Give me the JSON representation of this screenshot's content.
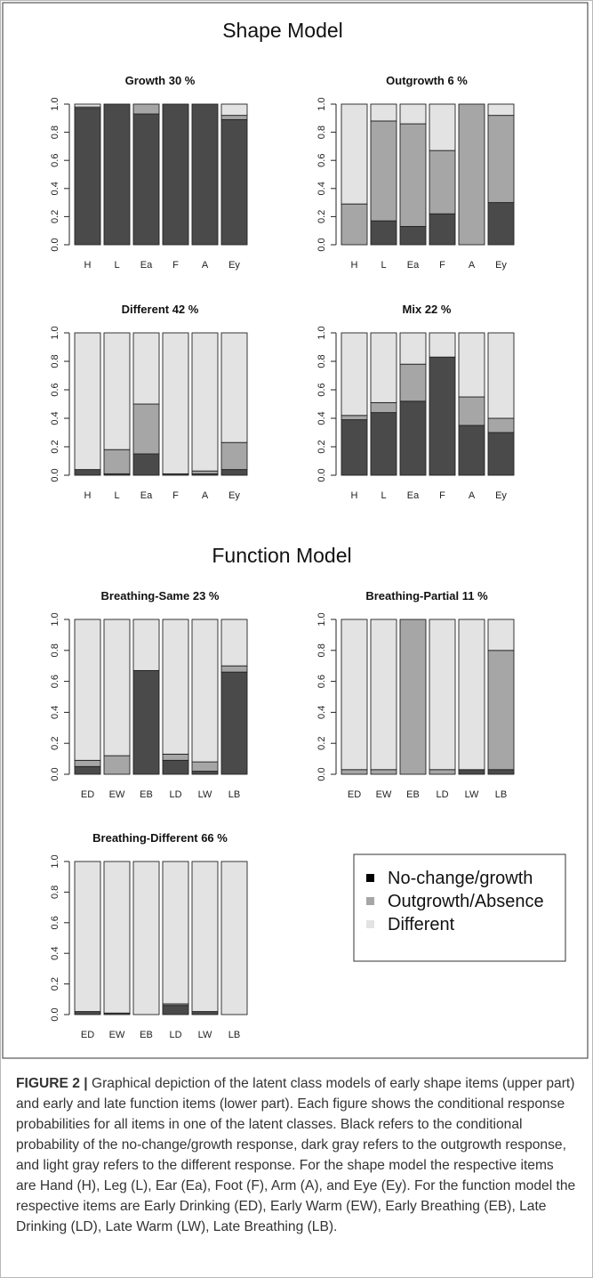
{
  "figure": {
    "shape_title": "Shape Model",
    "function_title": "Function Model",
    "legend": {
      "items": [
        {
          "label": "No-change/growth",
          "color": "#000000"
        },
        {
          "label": "Outgrowth/Absence",
          "color": "#a6a6a6"
        },
        {
          "label": "Different",
          "color": "#e3e3e3"
        }
      ]
    },
    "colors": {
      "no_change_growth": "#4a4a4a",
      "outgrowth": "#a6a6a6",
      "different": "#e3e3e3",
      "outline": "#222222"
    }
  },
  "chart_data": [
    {
      "type": "bar",
      "stacked": true,
      "title": "Growth 30 %",
      "categories": [
        "H",
        "L",
        "Ea",
        "F",
        "A",
        "Ey"
      ],
      "ylim": [
        0,
        1
      ],
      "yticks": [
        "0.0",
        "0.2",
        "0.4",
        "0.6",
        "0.8",
        "1.0"
      ],
      "series": [
        {
          "values": [
            0.97,
            1.0,
            0.93,
            1.0,
            1.0,
            0.89
          ]
        },
        {
          "values": [
            0.01,
            0.0,
            0.07,
            0.0,
            0.0,
            0.03
          ]
        },
        {
          "values": [
            0.02,
            0.0,
            0.0,
            0.0,
            0.0,
            0.08
          ]
        }
      ]
    },
    {
      "type": "bar",
      "stacked": true,
      "title": "Outgrowth 6 %",
      "categories": [
        "H",
        "L",
        "Ea",
        "F",
        "A",
        "Ey"
      ],
      "ylim": [
        0,
        1
      ],
      "yticks": [
        "0.0",
        "0.2",
        "0.4",
        "0.6",
        "0.8",
        "1.0"
      ],
      "series": [
        {
          "values": [
            0.0,
            0.17,
            0.13,
            0.22,
            0.0,
            0.3
          ]
        },
        {
          "values": [
            0.29,
            0.71,
            0.73,
            0.45,
            1.0,
            0.62
          ]
        },
        {
          "values": [
            0.71,
            0.12,
            0.14,
            0.33,
            0.0,
            0.08
          ]
        }
      ]
    },
    {
      "type": "bar",
      "stacked": true,
      "title": "Different 42 %",
      "categories": [
        "H",
        "L",
        "Ea",
        "F",
        "A",
        "Ey"
      ],
      "ylim": [
        0,
        1
      ],
      "yticks": [
        "0.0",
        "0.2",
        "0.4",
        "0.6",
        "0.8",
        "1.0"
      ],
      "series": [
        {
          "values": [
            0.04,
            0.01,
            0.15,
            0.01,
            0.01,
            0.04
          ]
        },
        {
          "values": [
            0.0,
            0.17,
            0.35,
            0.0,
            0.02,
            0.19
          ]
        },
        {
          "values": [
            0.96,
            0.82,
            0.5,
            0.99,
            0.97,
            0.77
          ]
        }
      ]
    },
    {
      "type": "bar",
      "stacked": true,
      "title": "Mix 22 %",
      "categories": [
        "H",
        "L",
        "Ea",
        "F",
        "A",
        "Ey"
      ],
      "ylim": [
        0,
        1
      ],
      "yticks": [
        "0.0",
        "0.2",
        "0.4",
        "0.6",
        "0.8",
        "1.0"
      ],
      "series": [
        {
          "values": [
            0.39,
            0.44,
            0.52,
            0.83,
            0.35,
            0.3
          ]
        },
        {
          "values": [
            0.03,
            0.07,
            0.26,
            0.0,
            0.2,
            0.1
          ]
        },
        {
          "values": [
            0.58,
            0.49,
            0.22,
            0.17,
            0.45,
            0.6
          ]
        }
      ]
    },
    {
      "type": "bar",
      "stacked": true,
      "title": "Breathing-Same 23 %",
      "categories": [
        "ED",
        "EW",
        "EB",
        "LD",
        "LW",
        "LB"
      ],
      "ylim": [
        0,
        1
      ],
      "yticks": [
        "0.0",
        "0.2",
        "0.4",
        "0.6",
        "0.8",
        "1.0"
      ],
      "series": [
        {
          "values": [
            0.05,
            0.0,
            0.67,
            0.09,
            0.02,
            0.66
          ]
        },
        {
          "values": [
            0.04,
            0.12,
            0.0,
            0.04,
            0.06,
            0.04
          ]
        },
        {
          "values": [
            0.91,
            0.88,
            0.33,
            0.87,
            0.92,
            0.3
          ]
        }
      ]
    },
    {
      "type": "bar",
      "stacked": true,
      "title": "Breathing-Partial 11 %",
      "categories": [
        "ED",
        "EW",
        "EB",
        "LD",
        "LW",
        "LB"
      ],
      "ylim": [
        0,
        1
      ],
      "yticks": [
        "0.0",
        "0.2",
        "0.4",
        "0.6",
        "0.8",
        "1.0"
      ],
      "series": [
        {
          "values": [
            0.0,
            0.0,
            0.0,
            0.0,
            0.03,
            0.03
          ]
        },
        {
          "values": [
            0.03,
            0.03,
            1.0,
            0.03,
            0.0,
            0.77
          ]
        },
        {
          "values": [
            0.97,
            0.97,
            0.0,
            0.97,
            0.97,
            0.2
          ]
        }
      ]
    },
    {
      "type": "bar",
      "stacked": true,
      "title": "Breathing-Different 66 %",
      "categories": [
        "ED",
        "EW",
        "EB",
        "LD",
        "LW",
        "LB"
      ],
      "ylim": [
        0,
        1
      ],
      "yticks": [
        "0.0",
        "0.2",
        "0.4",
        "0.6",
        "0.8",
        "1.0"
      ],
      "series": [
        {
          "values": [
            0.02,
            0.01,
            0.0,
            0.06,
            0.02,
            0.0
          ]
        },
        {
          "values": [
            0.0,
            0.0,
            0.0,
            0.01,
            0.0,
            0.0
          ]
        },
        {
          "values": [
            0.98,
            0.99,
            1.0,
            0.93,
            0.98,
            1.0
          ]
        }
      ]
    }
  ],
  "caption": {
    "label": "FIGURE 2 |",
    "text": " Graphical depiction of the latent class models of early shape items (upper part) and early and late function items (lower part). Each figure shows the conditional response probabilities for all items in one of the latent classes. Black refers to the conditional probability of the no-change/growth response, dark gray refers to the outgrowth response, and light gray refers to the different response. For the shape model the respective items are Hand (H), Leg (L), Ear (Ea), Foot (F), Arm (A), and Eye (Ey). For the function model the respective items are Early Drinking (ED), Early Warm (EW), Early Breathing (EB), Late Drinking (LD), Late Warm (LW), Late Breathing (LB)."
  }
}
